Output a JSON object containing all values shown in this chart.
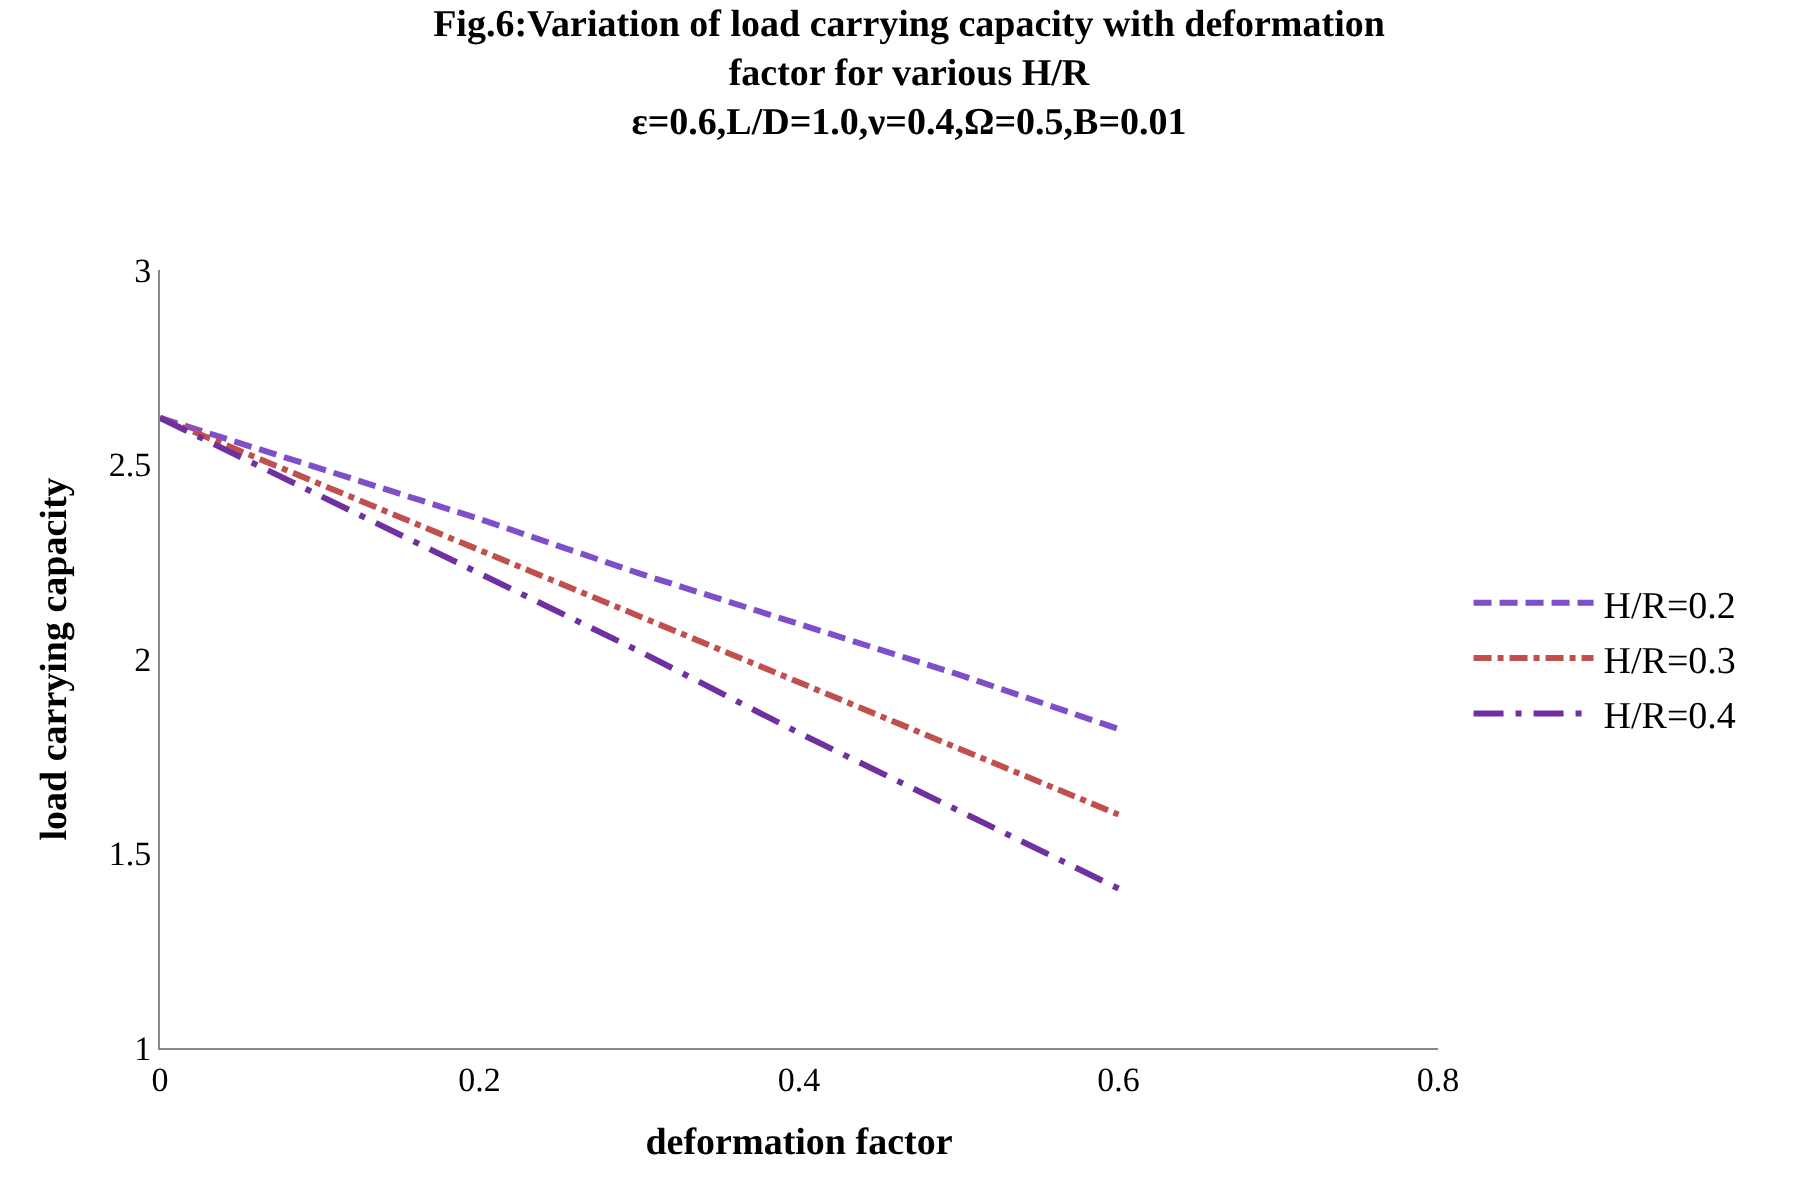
{
  "chart_data": {
    "type": "line",
    "title": "Fig.6:Variation of load carrying capacity with deformation\nfactor for various H/R\nε=0.6,L/D=1.0,ν=0.4,Ω=0.5,B=0.01",
    "xlabel": "deformation factor",
    "ylabel": "load carrying capacity",
    "x": [
      0,
      0.1,
      0.2,
      0.3,
      0.4,
      0.5,
      0.6
    ],
    "series": [
      {
        "name": "H/R=0.2",
        "color": "#7f4fc9",
        "line_style": "dashed",
        "values": [
          2.62,
          2.49,
          2.36,
          2.22,
          2.09,
          1.96,
          1.82
        ]
      },
      {
        "name": "H/R=0.3",
        "color": "#c0504d",
        "line_style": "dashdot",
        "values": [
          2.62,
          2.45,
          2.28,
          2.11,
          1.94,
          1.77,
          1.6
        ]
      },
      {
        "name": "H/R=0.4",
        "color": "#7030a0",
        "line_style": "longdashdot",
        "values": [
          2.62,
          2.42,
          2.22,
          2.02,
          1.81,
          1.61,
          1.41
        ]
      }
    ],
    "xlim": [
      0,
      0.8
    ],
    "xticks": [
      0,
      0.2,
      0.4,
      0.6,
      0.8
    ],
    "ylim": [
      1,
      3
    ],
    "yticks": [
      1,
      1.5,
      2,
      2.5,
      3
    ],
    "legend": "right"
  }
}
